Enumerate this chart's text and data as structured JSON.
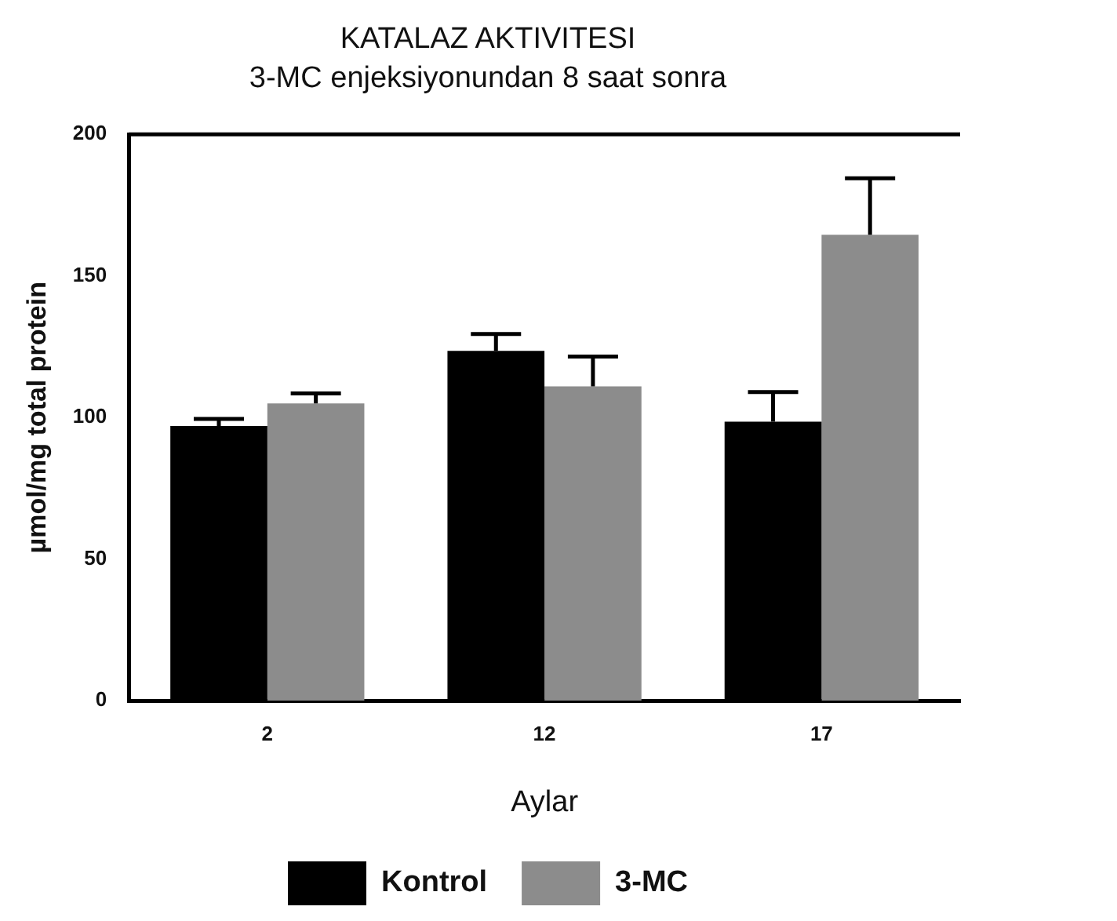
{
  "chart_data": {
    "type": "bar",
    "title": "KATALAZ AKTIVITESI",
    "subtitle": "3-MC enjeksiyonundan 8 saat sonra",
    "xlabel": "Aylar",
    "ylabel": "µmol/mg total protein",
    "categories": [
      "2",
      "12",
      "17"
    ],
    "series": [
      {
        "name": "Kontrol",
        "color": "#000000",
        "values": [
          97,
          123.5,
          98.5
        ],
        "errors": [
          2.5,
          6,
          10.5
        ]
      },
      {
        "name": "3-MC",
        "color": "#8c8c8c",
        "values": [
          105,
          111,
          164.5
        ],
        "errors": [
          3.5,
          10.5,
          20
        ]
      }
    ],
    "ylim": [
      0,
      200
    ],
    "yticks": [
      0,
      50,
      100,
      150,
      200
    ],
    "grid": false,
    "legend": "bottom"
  }
}
